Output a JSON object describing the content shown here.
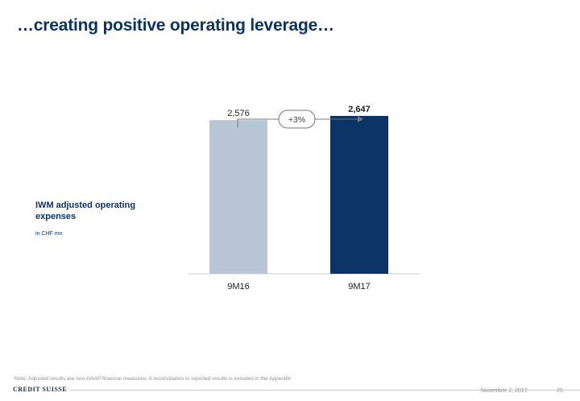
{
  "slide": {
    "title": "…creating positive operating leverage…",
    "side_label": "IWM adjusted operating expenses",
    "side_unit": "in CHF mn",
    "note": "Note: Adjusted results are non-GAAP financial measures. A reconciliation to reported results is included in the Appendix",
    "logo": "CREDIT SUISSE",
    "date": "November 2, 2017",
    "page_number": "25"
  },
  "chart_data": {
    "type": "bar",
    "categories": [
      "9M16",
      "9M17"
    ],
    "values": [
      2576,
      2647
    ],
    "value_labels": [
      "2,576",
      "2,647"
    ],
    "bar_colors": [
      "#b8c6d5",
      "#0b3366"
    ],
    "highlighted": [
      false,
      true
    ],
    "change_label": "+3%",
    "ylim": [
      0,
      2700
    ]
  }
}
